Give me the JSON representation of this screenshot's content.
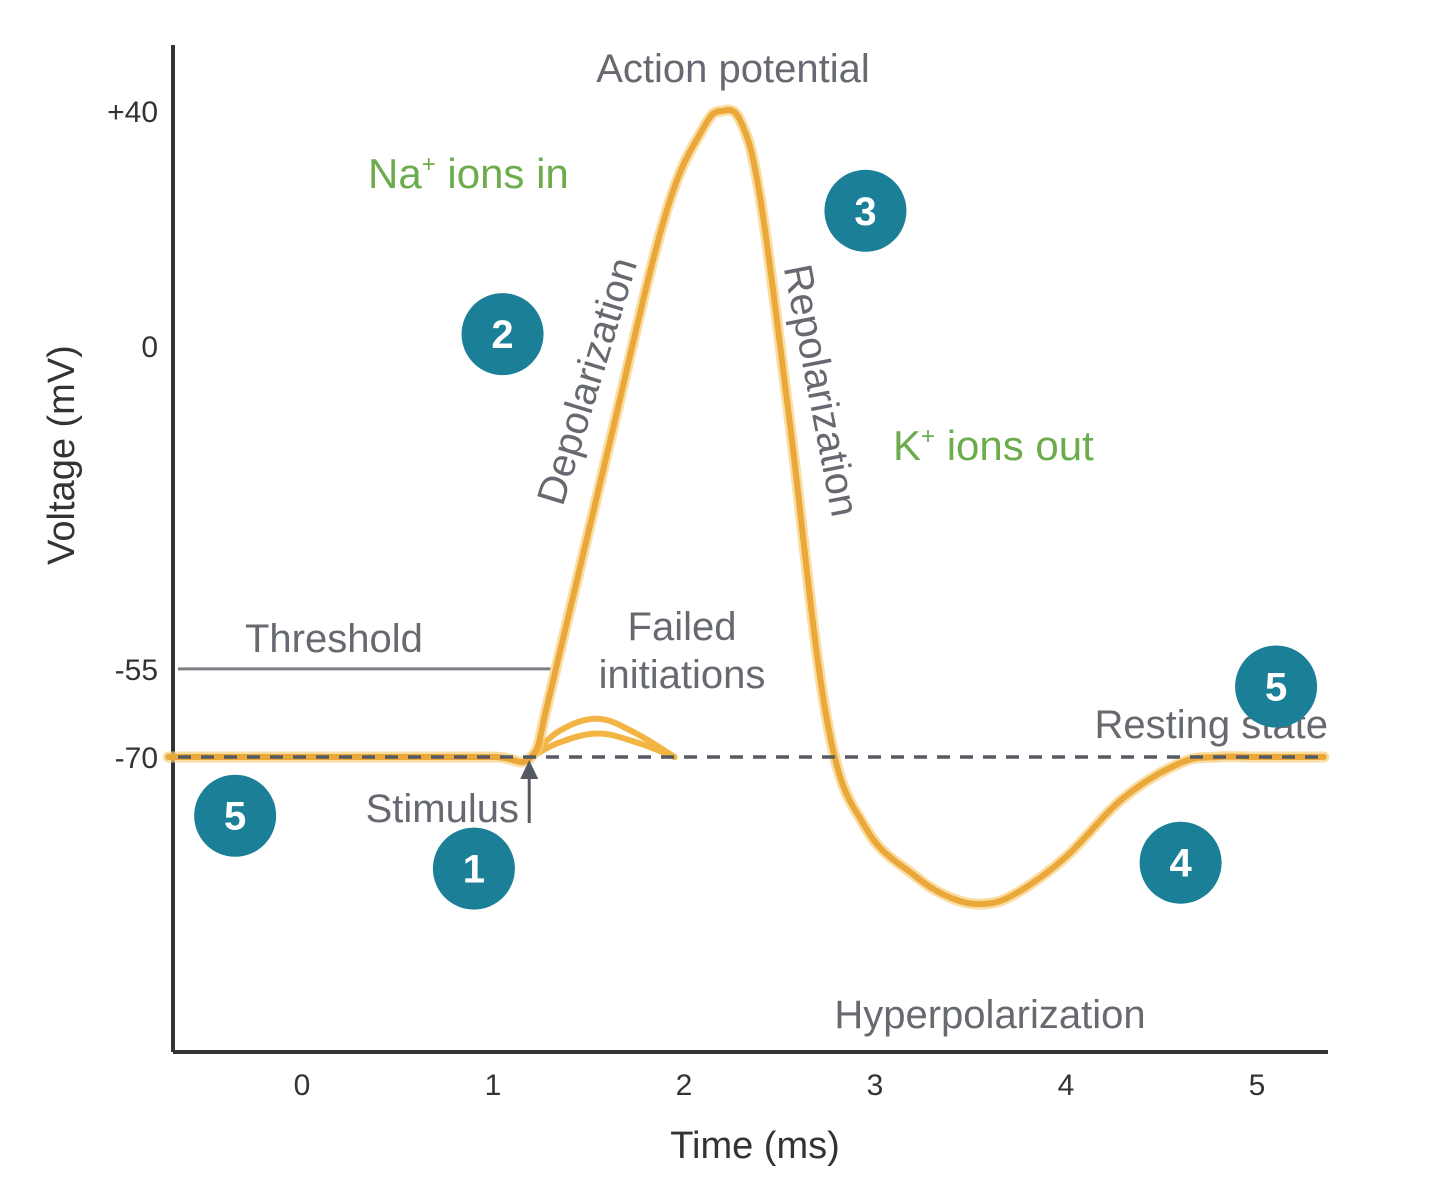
{
  "chart_data": {
    "type": "line",
    "xlabel": "Time (ms)",
    "ylabel": "Voltage (mV)",
    "xlim": [
      -0.7,
      5.35
    ],
    "ylim": [
      -95,
      45
    ],
    "x_ticks": [
      "0",
      "1",
      "2",
      "3",
      "4",
      "5"
    ],
    "x_tick_values": [
      0,
      1,
      2,
      3,
      4,
      5
    ],
    "y_ticks": [
      "+40",
      "0",
      "-55",
      "-70"
    ],
    "y_tick_values": [
      40,
      0,
      -55,
      -70
    ],
    "colors": {
      "curve": "#f2b544",
      "curve_core": "#e8a030",
      "badge": "#1a7f97",
      "gray_text": "#666a70",
      "green_text": "#6dac4c",
      "axis": "#333333"
    },
    "series": [
      {
        "values_description": "membrane potential",
        "x": [
          -0.7,
          0.0,
          0.5,
          1.0,
          1.2,
          1.3,
          1.6,
          1.9,
          2.1,
          2.2,
          2.3,
          2.4,
          2.55,
          2.75,
          2.95,
          3.2,
          3.4,
          3.58,
          3.75,
          4.0,
          4.3,
          4.6,
          4.8,
          5.0,
          5.35
        ],
        "y": [
          -70,
          -70,
          -70,
          -70,
          -70,
          -59,
          -18,
          22,
          37,
          40,
          38,
          25,
          -12,
          -64,
          -82,
          -90,
          -94,
          -95,
          -93,
          -87,
          -77,
          -71,
          -70,
          -70,
          -70
        ]
      }
    ],
    "failed_initiations": [
      {
        "x": [
          1.2,
          1.35,
          1.55,
          1.75,
          1.95
        ],
        "y": [
          -70,
          -65.5,
          -63.5,
          -66,
          -70
        ]
      },
      {
        "x": [
          1.2,
          1.35,
          1.55,
          1.75,
          1.95
        ],
        "y": [
          -70,
          -67.5,
          -66,
          -67.5,
          -70
        ]
      }
    ],
    "threshold": {
      "value": -55,
      "x_end": 1.3,
      "label": "Threshold"
    },
    "resting_line": {
      "value": -70
    },
    "stimulus": {
      "x": 1.2,
      "label": "Stimulus"
    },
    "annotations": {
      "action_potential": "Action potential",
      "na_ions_prefix": "Na",
      "na_ions_suffix": " ions in",
      "k_ions_prefix": "K",
      "k_ions_suffix": " ions out",
      "ion_superscript": "+",
      "depolarization": "Depolarization",
      "repolarization": "Repolarization",
      "failed_line1": "Failed",
      "failed_line2": "initiations",
      "resting_state": "Resting state",
      "hyperpolarization": "Hyperpolarization"
    },
    "badges": [
      {
        "id": "badge-5-left",
        "label": "5",
        "x": -0.35,
        "y": -80
      },
      {
        "id": "badge-1",
        "label": "1",
        "x": 0.9,
        "y": -89
      },
      {
        "id": "badge-2",
        "label": "2",
        "x": 1.05,
        "y": 2
      },
      {
        "id": "badge-3",
        "label": "3",
        "x": 2.95,
        "y": 23
      },
      {
        "id": "badge-4",
        "label": "4",
        "x": 4.6,
        "y": -88
      },
      {
        "id": "badge-5-right",
        "label": "5",
        "x": 5.1,
        "y": -58
      }
    ]
  }
}
